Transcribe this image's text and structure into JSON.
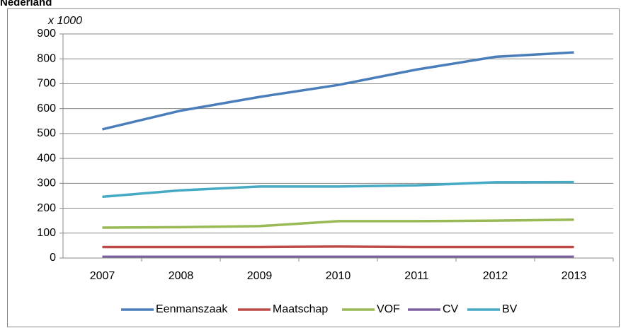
{
  "chart_data": {
    "type": "line",
    "title": "Nederland",
    "unit_label": "x 1000",
    "categories": [
      "2007",
      "2008",
      "2009",
      "2010",
      "2011",
      "2012",
      "2013"
    ],
    "series": [
      {
        "name": "Eenmanszaak",
        "color": "#4a7ebb",
        "values": [
          517,
          592,
          647,
          695,
          757,
          808,
          826
        ]
      },
      {
        "name": "Maatschap",
        "color": "#be4b48",
        "values": [
          44,
          44,
          44,
          46,
          44,
          44,
          44
        ]
      },
      {
        "name": "VOF",
        "color": "#98b954",
        "values": [
          122,
          124,
          128,
          148,
          148,
          150,
          154
        ]
      },
      {
        "name": "CV",
        "color": "#7d60a0",
        "values": [
          5,
          5,
          5,
          5,
          5,
          5,
          5
        ]
      },
      {
        "name": "BV",
        "color": "#46aac5",
        "values": [
          246,
          272,
          287,
          287,
          292,
          304,
          305
        ]
      }
    ],
    "ylim": [
      0,
      900
    ],
    "yticks": [
      0,
      100,
      200,
      300,
      400,
      500,
      600,
      700,
      800,
      900
    ],
    "grid": true,
    "legend": "bottom"
  }
}
